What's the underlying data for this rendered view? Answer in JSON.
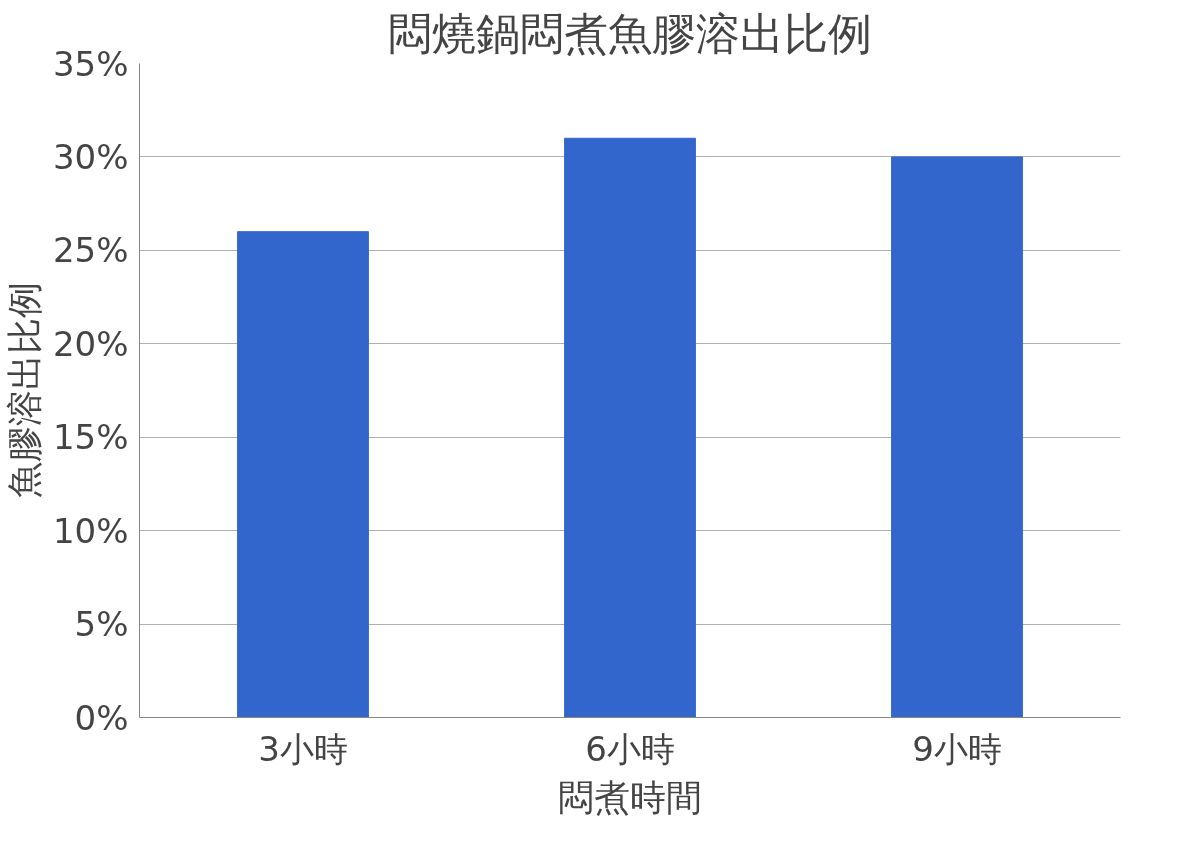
{
  "chart_data": {
    "type": "bar",
    "title": "悶燒鍋悶煮魚膠溶出比例",
    "xlabel": "悶煮時間",
    "ylabel": "魚膠溶出比例",
    "categories": [
      "3小時",
      "6小時",
      "9小時"
    ],
    "values": [
      26,
      31,
      30
    ],
    "color": "#3366cc",
    "ylim": [
      0,
      35
    ],
    "yticks": [
      {
        "value": 0,
        "label": "0%"
      },
      {
        "value": 5,
        "label": "5%"
      },
      {
        "value": 10,
        "label": "10%"
      },
      {
        "value": 15,
        "label": "15%"
      },
      {
        "value": 20,
        "label": "20%"
      },
      {
        "value": 25,
        "label": "25%"
      },
      {
        "value": 30,
        "label": "30%"
      },
      {
        "value": 35,
        "label": "35%"
      }
    ],
    "grid": "y"
  }
}
